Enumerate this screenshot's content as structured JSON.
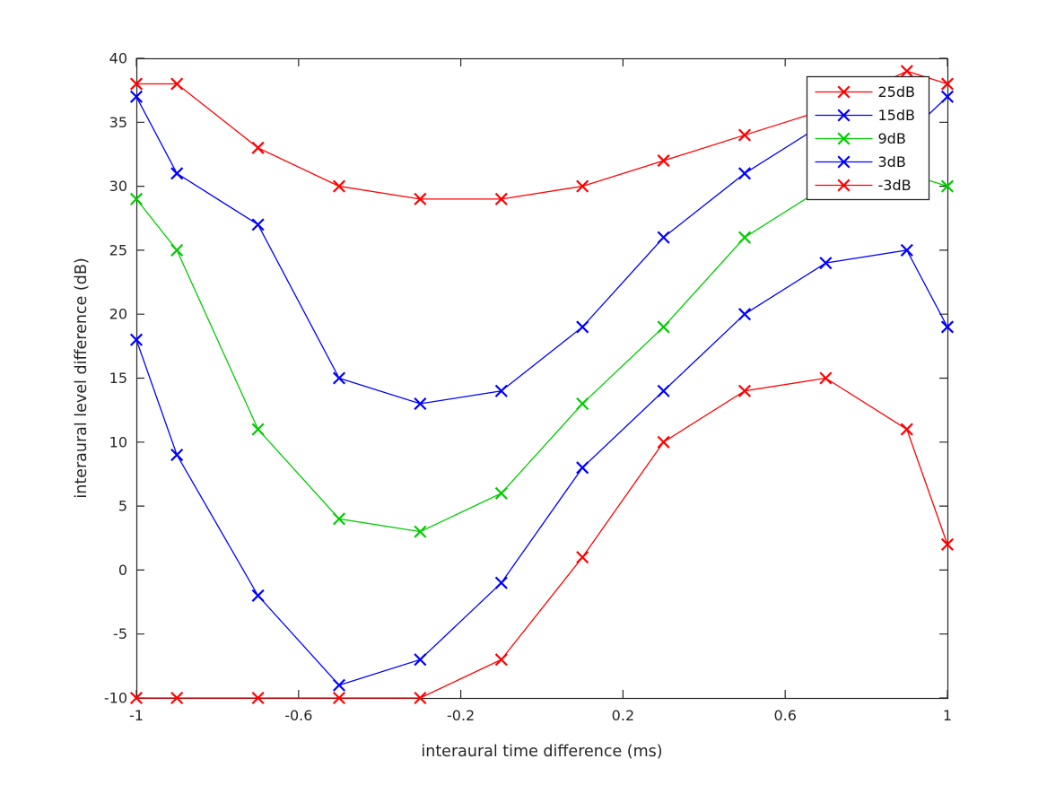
{
  "figure": {
    "background": "#ffffff"
  },
  "chart_data": {
    "type": "line",
    "title": "",
    "xlabel": "interaural time difference (ms)",
    "ylabel": "interaural level difference (dB)",
    "xlim": [
      -1,
      1
    ],
    "ylim": [
      -10,
      40
    ],
    "grid": false,
    "axis_color": "#262626",
    "x_ticks": {
      "values": [
        -1,
        -0.6,
        -0.2,
        0.2,
        0.6,
        1
      ],
      "labels": [
        "-1",
        "-0.6",
        "-0.2",
        "0.2",
        "0.6",
        "1"
      ]
    },
    "y_ticks": {
      "values": [
        -10,
        -5,
        0,
        5,
        10,
        15,
        20,
        25,
        30,
        35,
        40
      ],
      "labels": [
        "-10",
        "-5",
        "0",
        "5",
        "10",
        "15",
        "20",
        "25",
        "30",
        "35",
        "40"
      ]
    },
    "x": [
      -1,
      -0.9,
      -0.7,
      -0.5,
      -0.3,
      -0.1,
      0.1,
      0.3,
      0.5,
      0.7,
      0.9,
      1
    ],
    "series": [
      {
        "name": "25dB",
        "color": "#ff0000",
        "marker": "x",
        "values": [
          38,
          38,
          33,
          30,
          29,
          29,
          30,
          32,
          34,
          36,
          39,
          38
        ]
      },
      {
        "name": "15dB",
        "color": "#0000ff",
        "marker": "x",
        "values": [
          37,
          31,
          27,
          15,
          13,
          14,
          19,
          26,
          31,
          35,
          34,
          37
        ]
      },
      {
        "name": "9dB",
        "color": "#00cc00",
        "marker": "x",
        "values": [
          29,
          25,
          11,
          4,
          3,
          6,
          13,
          19,
          26,
          30,
          31,
          30
        ]
      },
      {
        "name": "3dB",
        "color": "#0000ff",
        "marker": "x",
        "values": [
          18,
          9,
          -2,
          -9,
          -7,
          -1,
          8,
          14,
          20,
          24,
          25,
          19
        ]
      },
      {
        "name": "-3dB",
        "color": "#ff0000",
        "marker": "x",
        "values": [
          -10,
          -10,
          -10,
          -10,
          -10,
          -7,
          1,
          10,
          14,
          15,
          11,
          2
        ]
      }
    ],
    "legend": {
      "position": "top-right",
      "entries": [
        "25dB",
        "15dB",
        "9dB",
        "3dB",
        "-3dB"
      ]
    }
  }
}
